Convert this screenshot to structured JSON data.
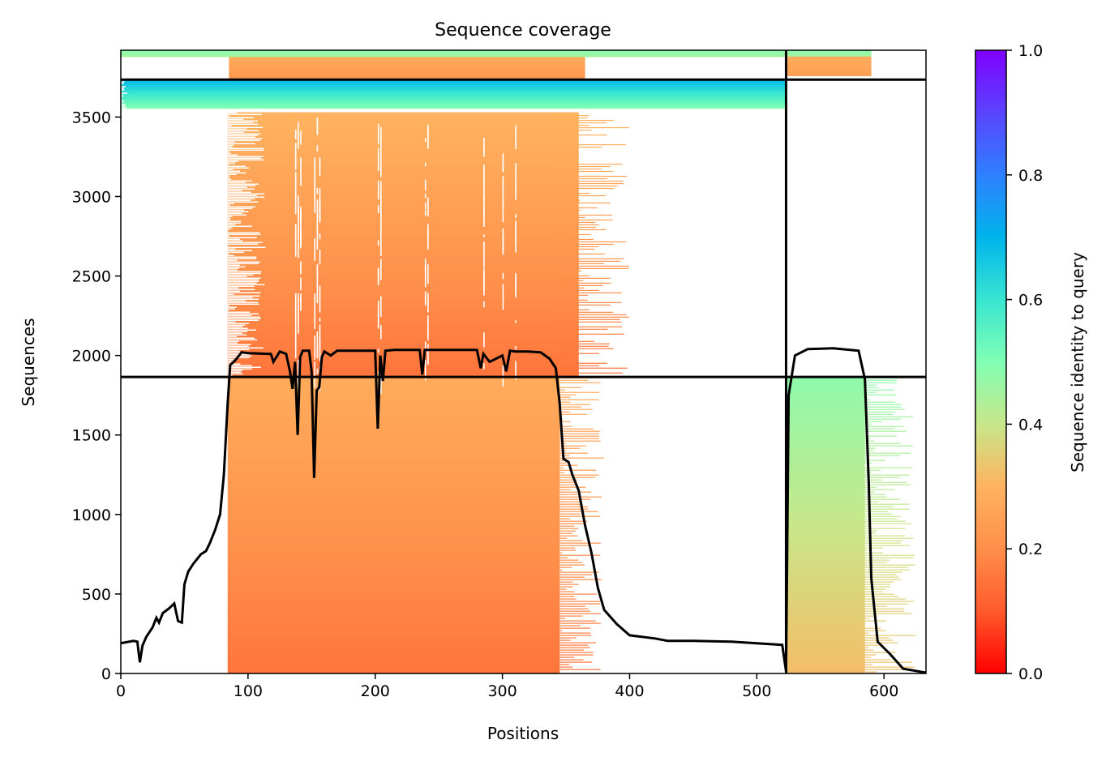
{
  "chart_data": {
    "type": "heatmap",
    "title": "Sequence coverage",
    "xlabel": "Positions",
    "ylabel": "Sequences",
    "xlim": [
      0,
      633
    ],
    "ylim": [
      0,
      3920
    ],
    "x_ticks": [
      0,
      100,
      200,
      300,
      400,
      500,
      600
    ],
    "y_ticks": [
      0,
      500,
      1000,
      1500,
      2000,
      2500,
      3000,
      3500
    ],
    "colorbar": {
      "label": "Sequence identity to query",
      "range": [
        0,
        1
      ],
      "ticks": [
        0.0,
        0.2,
        0.4,
        0.6,
        0.8,
        1.0
      ],
      "tick_labels": [
        "0.0",
        "0.2",
        "0.4",
        "0.6",
        "0.8",
        "1.0"
      ],
      "colormap": "rainbow_r"
    },
    "chain_boundaries": {
      "x": [
        523
      ],
      "y": [
        1865,
        3735
      ]
    },
    "coverage_blocks": [
      {
        "name": "chain-A-own",
        "x": [
          84,
          345
        ],
        "y": [
          0,
          1865
        ],
        "identity": [
          0.15,
          0.28
        ],
        "tail_x": [
          345,
          380
        ]
      },
      {
        "name": "chain-A-paired",
        "x": [
          84,
          360
        ],
        "y": [
          1865,
          3530
        ],
        "identity": [
          0.15,
          0.3
        ],
        "tail_x": [
          345,
          400
        ]
      },
      {
        "name": "chain-A-high-identity",
        "x": [
          0,
          523
        ],
        "y": [
          3555,
          3735
        ],
        "identity": [
          0.5,
          0.7
        ]
      },
      {
        "name": "chain-A-top",
        "x": [
          85,
          365
        ],
        "y": [
          3735,
          3880
        ],
        "identity": [
          0.22,
          0.28
        ]
      },
      {
        "name": "chain-B",
        "x": [
          524,
          585
        ],
        "y": [
          0,
          1865
        ],
        "identity": [
          0.32,
          0.48
        ],
        "tail_x": [
          585,
          625
        ]
      },
      {
        "name": "chain-B-top-green",
        "x": [
          0,
          590
        ],
        "y": [
          3880,
          3920
        ],
        "identity": [
          0.45,
          0.5
        ]
      },
      {
        "name": "chain-B-top-orange",
        "x": [
          524,
          590
        ],
        "y": [
          3760,
          3880
        ],
        "identity": [
          0.25,
          0.28
        ]
      }
    ],
    "coverage_line": {
      "x": [
        0,
        10,
        13,
        15,
        17,
        20,
        25,
        28,
        30,
        33,
        38,
        42,
        45,
        48,
        50,
        53,
        57,
        63,
        67,
        70,
        74,
        78,
        81,
        84,
        86,
        90,
        95,
        100,
        118,
        120,
        125,
        130,
        133,
        135,
        137,
        139,
        141,
        143,
        148,
        150,
        152,
        154,
        156,
        158,
        160,
        165,
        170,
        180,
        200,
        202,
        204,
        206,
        208,
        215,
        235,
        237,
        239,
        241,
        250,
        280,
        283,
        285,
        290,
        300,
        303,
        306,
        310,
        320,
        330,
        337,
        342,
        345,
        348,
        352,
        355,
        360,
        365,
        370,
        375,
        380,
        390,
        400,
        420,
        430,
        450,
        480,
        500,
        520,
        523,
        525,
        530,
        540,
        560,
        580,
        585,
        588,
        590,
        595,
        605,
        615,
        633
      ],
      "y": [
        190,
        205,
        200,
        70,
        175,
        230,
        290,
        350,
        320,
        380,
        410,
        440,
        330,
        320,
        560,
        640,
        690,
        750,
        770,
        820,
        900,
        1000,
        1250,
        1700,
        1940,
        1970,
        2020,
        2015,
        2010,
        1960,
        2025,
        2010,
        1900,
        1790,
        1960,
        1500,
        1990,
        2030,
        2030,
        1900,
        1230,
        1780,
        1800,
        1990,
        2025,
        2000,
        2030,
        2030,
        2030,
        1540,
        2000,
        1840,
        2030,
        2035,
        2035,
        1880,
        2035,
        2035,
        2035,
        2035,
        1920,
        2010,
        1960,
        2000,
        1900,
        2030,
        2025,
        2025,
        2020,
        1980,
        1920,
        1700,
        1350,
        1330,
        1250,
        1150,
        930,
        760,
        540,
        400,
        310,
        240,
        220,
        205,
        205,
        200,
        190,
        180,
        15,
        1750,
        2000,
        2040,
        2045,
        2030,
        1850,
        1200,
        600,
        200,
        120,
        30,
        5
      ]
    }
  }
}
